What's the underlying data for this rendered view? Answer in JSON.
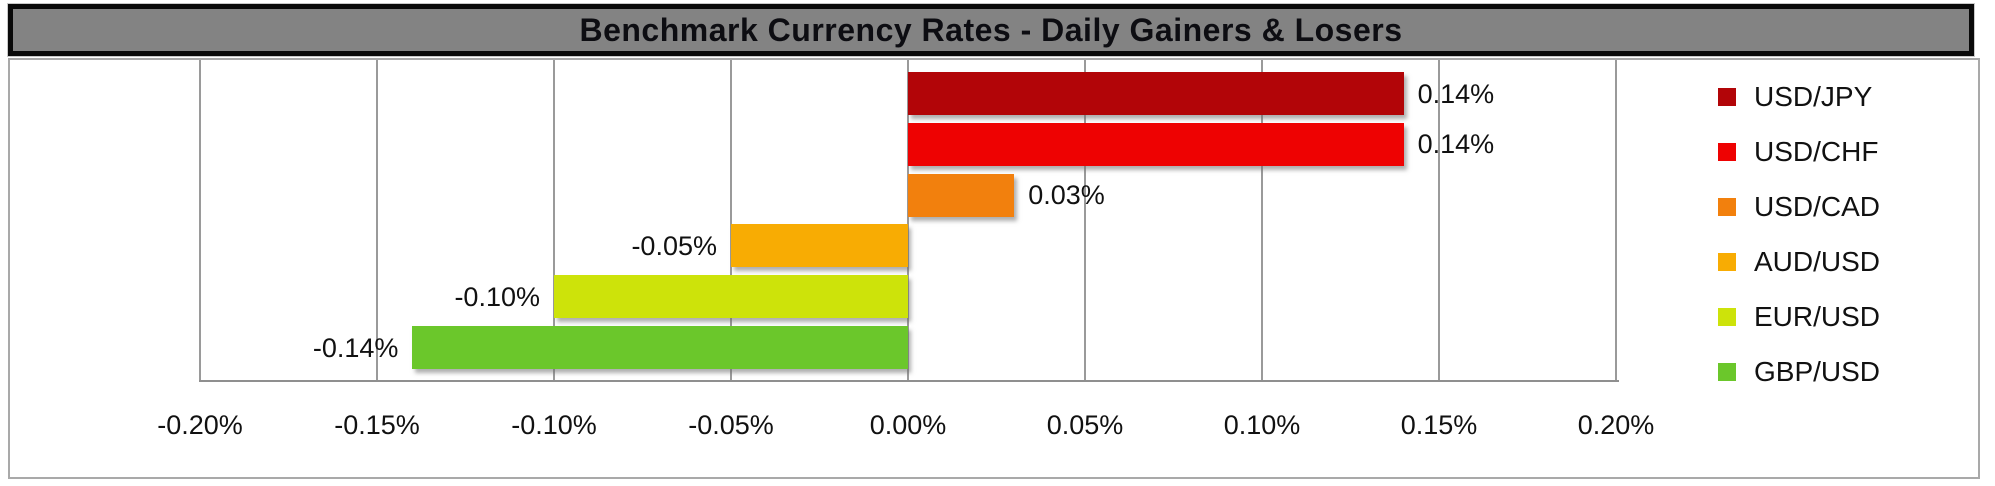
{
  "chart_data": {
    "type": "bar",
    "orientation": "horizontal",
    "title": "Benchmark Currency Rates - Daily Gainers & Losers",
    "categories": [
      "USD/JPY",
      "USD/CHF",
      "USD/CAD",
      "AUD/USD",
      "EUR/USD",
      "GBP/USD"
    ],
    "values": [
      0.14,
      0.14,
      0.03,
      -0.05,
      -0.1,
      -0.14
    ],
    "data_labels": [
      "0.14%",
      "0.14%",
      "0.03%",
      "-0.05%",
      "-0.10%",
      "-0.14%"
    ],
    "series_colors": [
      "#B20508",
      "#EE0202",
      "#F2800D",
      "#F8AC03",
      "#CDE30A",
      "#6BC72B"
    ],
    "xlabel": "",
    "ylabel": "",
    "x_axis": {
      "min": -0.2,
      "max": 0.2,
      "step": 0.05,
      "tick_labels": [
        "-0.20%",
        "-0.15%",
        "-0.10%",
        "-0.05%",
        "0.00%",
        "0.05%",
        "0.10%",
        "0.15%",
        "0.20%"
      ]
    },
    "grid": true,
    "legend": {
      "position": "right",
      "entries": [
        {
          "label": "USD/JPY",
          "color": "#B20508"
        },
        {
          "label": "USD/CHF",
          "color": "#EE0202"
        },
        {
          "label": "USD/CAD",
          "color": "#F2800D"
        },
        {
          "label": "AUD/USD",
          "color": "#F8AC03"
        },
        {
          "label": "EUR/USD",
          "color": "#CDE30A"
        },
        {
          "label": "GBP/USD",
          "color": "#6BC72B"
        }
      ]
    }
  },
  "colors": {
    "banner_background": "#838383",
    "banner_border": "#0a0a0a",
    "chart_border": "#a9a9a9",
    "grid_line": "#9a9a9a",
    "text": "#111111",
    "background": "#ffffff"
  }
}
